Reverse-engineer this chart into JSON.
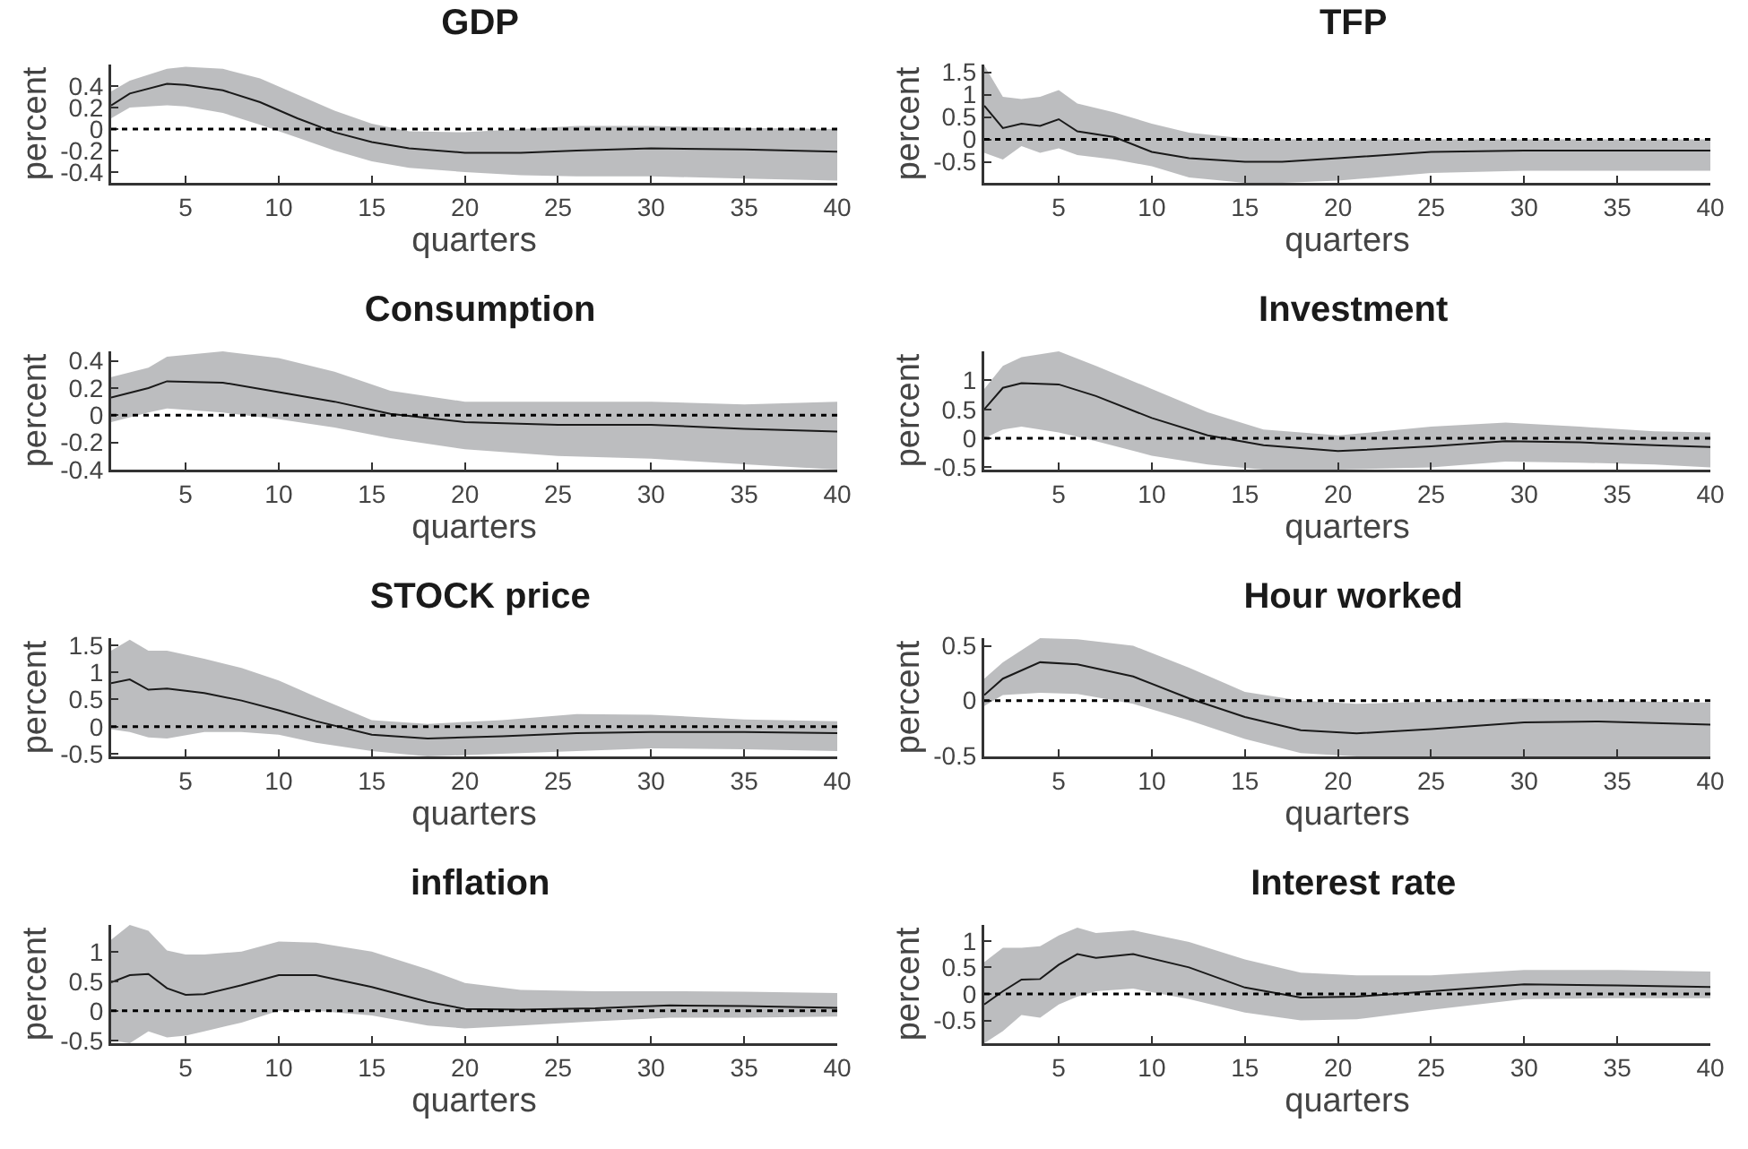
{
  "chart_data": [
    {
      "type": "line",
      "title": "GDP",
      "xlabel": "quarters",
      "ylabel": "percent",
      "xlim": [
        1,
        40
      ],
      "xticks": [
        5,
        10,
        15,
        20,
        25,
        30,
        35,
        40
      ],
      "ylim": [
        -0.5,
        0.6
      ],
      "yticks": [
        -0.4,
        -0.2,
        0,
        0.2,
        0.4
      ],
      "grid": false,
      "ref_lines": [
        {
          "axis": "y",
          "value": 0,
          "line_style": "dotted",
          "color": "#000000"
        }
      ],
      "series": [
        {
          "color": "#1a1a1a",
          "x": [
            1,
            2,
            4,
            5,
            7,
            9,
            11,
            13,
            15,
            17,
            20,
            23,
            26,
            30,
            35,
            40
          ],
          "values": [
            0.22,
            0.33,
            0.42,
            0.41,
            0.36,
            0.25,
            0.1,
            -0.03,
            -0.12,
            -0.18,
            -0.22,
            -0.22,
            -0.2,
            -0.18,
            -0.19,
            -0.21
          ],
          "lower": [
            0.1,
            0.2,
            0.22,
            0.21,
            0.15,
            0.04,
            -0.08,
            -0.2,
            -0.3,
            -0.36,
            -0.4,
            -0.43,
            -0.44,
            -0.44,
            -0.46,
            -0.48
          ],
          "upper": [
            0.35,
            0.45,
            0.56,
            0.58,
            0.56,
            0.47,
            0.32,
            0.17,
            0.05,
            -0.02,
            -0.03,
            0.0,
            0.03,
            0.03,
            0.01,
            0.0
          ]
        }
      ]
    },
    {
      "type": "line",
      "title": "TFP",
      "xlabel": "quarters",
      "ylabel": "percent",
      "xlim": [
        1,
        40
      ],
      "xticks": [
        5,
        10,
        15,
        20,
        25,
        30,
        35,
        40
      ],
      "ylim": [
        -0.97,
        1.67
      ],
      "yticks": [
        -0.5,
        0,
        0.5,
        1,
        1.5
      ],
      "grid": false,
      "ref_lines": [
        {
          "axis": "y",
          "value": 0,
          "line_style": "dotted",
          "color": "#000000"
        }
      ],
      "series": [
        {
          "color": "#1a1a1a",
          "x": [
            1,
            2,
            3,
            4,
            5,
            6,
            8,
            10,
            12,
            15,
            17,
            20,
            25,
            30,
            35,
            40
          ],
          "values": [
            0.75,
            0.25,
            0.35,
            0.3,
            0.45,
            0.18,
            0.05,
            -0.28,
            -0.42,
            -0.5,
            -0.5,
            -0.42,
            -0.28,
            -0.25,
            -0.25,
            -0.25
          ],
          "lower": [
            -0.3,
            -0.45,
            -0.15,
            -0.3,
            -0.2,
            -0.35,
            -0.45,
            -0.6,
            -0.85,
            -0.97,
            -0.97,
            -0.92,
            -0.75,
            -0.7,
            -0.7,
            -0.7
          ],
          "upper": [
            1.65,
            0.95,
            0.9,
            0.95,
            1.1,
            0.8,
            0.6,
            0.35,
            0.15,
            0.02,
            0.0,
            0.0,
            0.0,
            0.0,
            0.0,
            0.0
          ]
        }
      ]
    },
    {
      "type": "line",
      "title": "Consumption",
      "xlabel": "quarters",
      "ylabel": "percent",
      "xlim": [
        1,
        40
      ],
      "xticks": [
        5,
        10,
        15,
        20,
        25,
        30,
        35,
        40
      ],
      "ylim": [
        -0.4,
        0.47
      ],
      "yticks": [
        -0.4,
        -0.2,
        0,
        0.2,
        0.4
      ],
      "grid": false,
      "ref_lines": [
        {
          "axis": "y",
          "value": 0,
          "line_style": "dotted",
          "color": "#000000"
        }
      ],
      "series": [
        {
          "color": "#1a1a1a",
          "x": [
            1,
            3,
            4,
            7,
            10,
            13,
            16,
            20,
            25,
            30,
            35,
            40
          ],
          "values": [
            0.13,
            0.2,
            0.25,
            0.24,
            0.17,
            0.1,
            0.01,
            -0.05,
            -0.07,
            -0.07,
            -0.1,
            -0.12
          ],
          "lower": [
            -0.05,
            0.02,
            0.05,
            0.02,
            -0.03,
            -0.09,
            -0.17,
            -0.25,
            -0.3,
            -0.32,
            -0.36,
            -0.4
          ],
          "upper": [
            0.28,
            0.35,
            0.43,
            0.47,
            0.42,
            0.32,
            0.18,
            0.1,
            0.1,
            0.1,
            0.08,
            0.1
          ]
        }
      ]
    },
    {
      "type": "line",
      "title": "Investment",
      "xlabel": "quarters",
      "ylabel": "percent",
      "xlim": [
        1,
        40
      ],
      "xticks": [
        5,
        10,
        15,
        20,
        25,
        30,
        35,
        40
      ],
      "ylim": [
        -0.54,
        1.5
      ],
      "yticks": [
        -0.5,
        0,
        0.5,
        1
      ],
      "grid": false,
      "ref_lines": [
        {
          "axis": "y",
          "value": 0,
          "line_style": "dotted",
          "color": "#000000"
        }
      ],
      "series": [
        {
          "color": "#1a1a1a",
          "x": [
            1,
            2,
            3,
            5,
            7,
            10,
            13,
            16,
            20,
            25,
            29,
            33,
            37,
            40
          ],
          "values": [
            0.5,
            0.87,
            0.95,
            0.93,
            0.73,
            0.35,
            0.05,
            -0.12,
            -0.22,
            -0.14,
            -0.05,
            -0.07,
            -0.12,
            -0.15
          ],
          "lower": [
            0.0,
            0.15,
            0.2,
            0.1,
            -0.05,
            -0.3,
            -0.45,
            -0.54,
            -0.54,
            -0.5,
            -0.4,
            -0.42,
            -0.45,
            -0.5
          ],
          "upper": [
            0.85,
            1.25,
            1.4,
            1.5,
            1.25,
            0.85,
            0.45,
            0.15,
            0.05,
            0.2,
            0.27,
            0.2,
            0.12,
            0.1
          ]
        }
      ]
    },
    {
      "type": "line",
      "title": "STOCK price",
      "xlabel": "quarters",
      "ylabel": "percent",
      "xlim": [
        1,
        40
      ],
      "xticks": [
        5,
        10,
        15,
        20,
        25,
        30,
        35,
        40
      ],
      "ylim": [
        -0.55,
        1.63
      ],
      "yticks": [
        -0.5,
        0,
        0.5,
        1,
        1.5
      ],
      "grid": false,
      "ref_lines": [
        {
          "axis": "y",
          "value": 0,
          "line_style": "dotted",
          "color": "#000000"
        }
      ],
      "series": [
        {
          "color": "#1a1a1a",
          "x": [
            1,
            2,
            3,
            4,
            6,
            8,
            10,
            12,
            15,
            18,
            22,
            26,
            30,
            35,
            40
          ],
          "values": [
            0.8,
            0.87,
            0.68,
            0.7,
            0.62,
            0.48,
            0.3,
            0.1,
            -0.15,
            -0.22,
            -0.18,
            -0.12,
            -0.1,
            -0.1,
            -0.12
          ],
          "lower": [
            -0.05,
            -0.1,
            -0.2,
            -0.22,
            -0.1,
            -0.1,
            -0.15,
            -0.3,
            -0.45,
            -0.55,
            -0.5,
            -0.45,
            -0.4,
            -0.42,
            -0.45
          ],
          "upper": [
            1.4,
            1.6,
            1.4,
            1.4,
            1.25,
            1.08,
            0.85,
            0.55,
            0.12,
            0.05,
            0.12,
            0.23,
            0.22,
            0.13,
            0.1
          ]
        }
      ]
    },
    {
      "type": "line",
      "title": "Hour worked",
      "xlabel": "quarters",
      "ylabel": "percent",
      "xlim": [
        1,
        40
      ],
      "xticks": [
        5,
        10,
        15,
        20,
        25,
        30,
        35,
        40
      ],
      "ylim": [
        -0.51,
        0.57
      ],
      "yticks": [
        -0.5,
        0,
        0.5
      ],
      "grid": false,
      "ref_lines": [
        {
          "axis": "y",
          "value": 0,
          "line_style": "dotted",
          "color": "#000000"
        }
      ],
      "series": [
        {
          "color": "#1a1a1a",
          "x": [
            1,
            2,
            4,
            6,
            9,
            12,
            15,
            18,
            21,
            25,
            30,
            34,
            40
          ],
          "values": [
            0.05,
            0.2,
            0.35,
            0.33,
            0.22,
            0.02,
            -0.15,
            -0.27,
            -0.3,
            -0.26,
            -0.2,
            -0.19,
            -0.22
          ],
          "lower": [
            -0.05,
            0.05,
            0.07,
            0.06,
            -0.03,
            -0.18,
            -0.35,
            -0.48,
            -0.51,
            -0.51,
            -0.51,
            -0.51,
            -0.51
          ],
          "upper": [
            0.2,
            0.35,
            0.57,
            0.56,
            0.5,
            0.3,
            0.08,
            0.0,
            -0.03,
            -0.01,
            0.02,
            0.0,
            -0.02
          ]
        }
      ]
    },
    {
      "type": "line",
      "title": "inflation",
      "xlabel": "quarters",
      "ylabel": "percent",
      "xlim": [
        1,
        40
      ],
      "xticks": [
        5,
        10,
        15,
        20,
        25,
        30,
        35,
        40
      ],
      "ylim": [
        -0.55,
        1.45
      ],
      "yticks": [
        -0.5,
        0,
        0.5,
        1
      ],
      "grid": false,
      "ref_lines": [
        {
          "axis": "y",
          "value": 0,
          "line_style": "dotted",
          "color": "#000000"
        }
      ],
      "series": [
        {
          "color": "#1a1a1a",
          "x": [
            1,
            2,
            3,
            4,
            5,
            6,
            8,
            10,
            12,
            15,
            18,
            20,
            23,
            27,
            31,
            35,
            40
          ],
          "values": [
            0.48,
            0.6,
            0.62,
            0.38,
            0.27,
            0.28,
            0.43,
            0.6,
            0.6,
            0.4,
            0.15,
            0.03,
            0.02,
            0.04,
            0.09,
            0.08,
            0.05
          ],
          "lower": [
            -0.5,
            -0.55,
            -0.35,
            -0.45,
            -0.42,
            -0.35,
            -0.2,
            0.0,
            0.0,
            -0.08,
            -0.25,
            -0.3,
            -0.25,
            -0.18,
            -0.12,
            -0.12,
            -0.1
          ],
          "upper": [
            1.2,
            1.45,
            1.35,
            1.02,
            0.95,
            0.95,
            1.0,
            1.17,
            1.15,
            1.0,
            0.7,
            0.47,
            0.35,
            0.33,
            0.33,
            0.32,
            0.3
          ]
        }
      ]
    },
    {
      "type": "line",
      "title": "Interest rate",
      "xlabel": "quarters",
      "ylabel": "percent",
      "xlim": [
        1,
        40
      ],
      "xticks": [
        5,
        10,
        15,
        20,
        25,
        30,
        35,
        40
      ],
      "ylim": [
        -0.93,
        1.3
      ],
      "yticks": [
        -0.5,
        0,
        0.5,
        1
      ],
      "grid": false,
      "ref_lines": [
        {
          "axis": "y",
          "value": 0,
          "line_style": "dotted",
          "color": "#000000"
        }
      ],
      "series": [
        {
          "color": "#1a1a1a",
          "x": [
            1,
            2,
            3,
            4,
            5,
            6,
            7,
            9,
            12,
            15,
            18,
            21,
            25,
            30,
            35,
            40
          ],
          "values": [
            -0.2,
            0.05,
            0.27,
            0.28,
            0.55,
            0.75,
            0.68,
            0.75,
            0.5,
            0.12,
            -0.07,
            -0.05,
            0.05,
            0.18,
            0.16,
            0.13
          ],
          "lower": [
            -0.93,
            -0.7,
            -0.4,
            -0.45,
            -0.2,
            -0.05,
            0.05,
            0.1,
            -0.1,
            -0.35,
            -0.5,
            -0.48,
            -0.3,
            -0.1,
            -0.08,
            -0.08
          ],
          "upper": [
            0.6,
            0.87,
            0.87,
            0.9,
            1.1,
            1.25,
            1.15,
            1.2,
            0.98,
            0.65,
            0.4,
            0.35,
            0.35,
            0.45,
            0.45,
            0.42
          ]
        }
      ]
    }
  ]
}
